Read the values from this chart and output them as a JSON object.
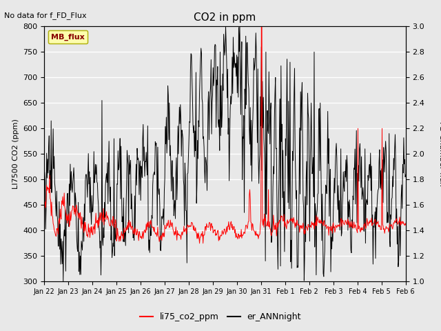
{
  "title": "CO2 in ppm",
  "top_left_text": "No data for f_FD_Flux",
  "legend_box_label": "MB_flux",
  "ylabel_left": "LI7500 CO2 (ppm)",
  "ylabel_right": "FD Chamber flux",
  "ylim_left": [
    300,
    800
  ],
  "ylim_right": [
    1.0,
    3.0
  ],
  "yticks_left": [
    300,
    350,
    400,
    450,
    500,
    550,
    600,
    650,
    700,
    750,
    800
  ],
  "yticks_right": [
    1.0,
    1.2,
    1.4,
    1.6,
    1.8,
    2.0,
    2.2,
    2.4,
    2.6,
    2.8,
    3.0
  ],
  "xtick_labels": [
    "Jan 22",
    "Jan 23",
    "Jan 24",
    "Jan 25",
    "Jan 26",
    "Jan 27",
    "Jan 28",
    "Jan 29",
    "Jan 30",
    "Jan 31",
    "Feb 1",
    "Feb 2",
    "Feb 3",
    "Feb 4",
    "Feb 5",
    "Feb 6"
  ],
  "legend_labels": [
    "li75_co2_ppm",
    "er_ANNnight"
  ],
  "legend_colors": [
    "red",
    "black"
  ],
  "line_red_color": "#ff0000",
  "line_black_color": "#000000",
  "background_color": "#e8e8e8",
  "plot_bg_color": "#e8e8e8",
  "grid_color": "#ffffff",
  "mb_flux_face": "#ffffaa",
  "mb_flux_edge": "#aaaa00",
  "mb_flux_text": "#880000"
}
